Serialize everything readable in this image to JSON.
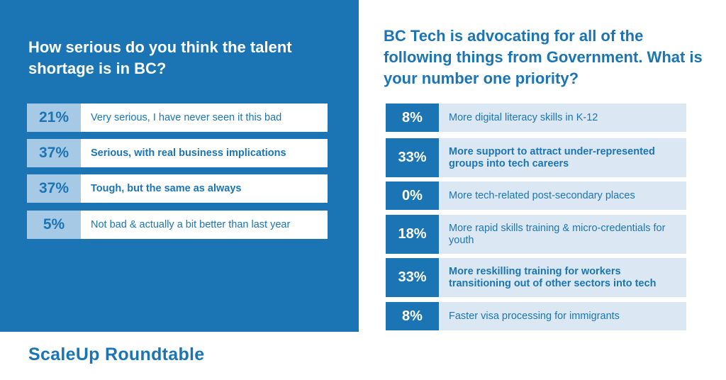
{
  "left_title": "How serious do you think the talent shortage is in BC?",
  "right_title": "BC Tech is advocating for all of the following things from Government. What is your number one priority?",
  "brand": "ScaleUp Roundtable",
  "colors": {
    "primary": "#1b75b4",
    "light_blue": "#a6c9e5",
    "pale_blue": "#dbe8f3",
    "white": "#ffffff"
  },
  "chart_data": [
    {
      "type": "table",
      "title": "How serious do you think the talent shortage is in BC?",
      "categories": [
        "Very serious, I have never seen it this bad",
        "Serious, with real business implications",
        "Tough, but the same as always",
        "Not bad & actually a bit better than last year"
      ],
      "values": [
        21,
        37,
        37,
        5
      ],
      "value_labels": [
        "21%",
        "37%",
        "37%",
        "5%"
      ],
      "highlighted": [
        false,
        true,
        true,
        false
      ]
    },
    {
      "type": "table",
      "title": "BC Tech is advocating for all of the following things from Government. What is your number one priority?",
      "categories": [
        "More digital literacy skills in K-12",
        "More support to attract under-represented groups into tech careers",
        "More tech-related post-secondary places",
        "More rapid skills training & micro-credentials for youth",
        "More reskilling training for workers transitioning out of other sectors into tech",
        "Faster visa processing for immigrants"
      ],
      "values": [
        8,
        33,
        0,
        18,
        33,
        8
      ],
      "value_labels": [
        "8%",
        "33%",
        "0%",
        "18%",
        "33%",
        "8%"
      ],
      "highlighted": [
        false,
        true,
        false,
        false,
        true,
        false
      ]
    }
  ]
}
